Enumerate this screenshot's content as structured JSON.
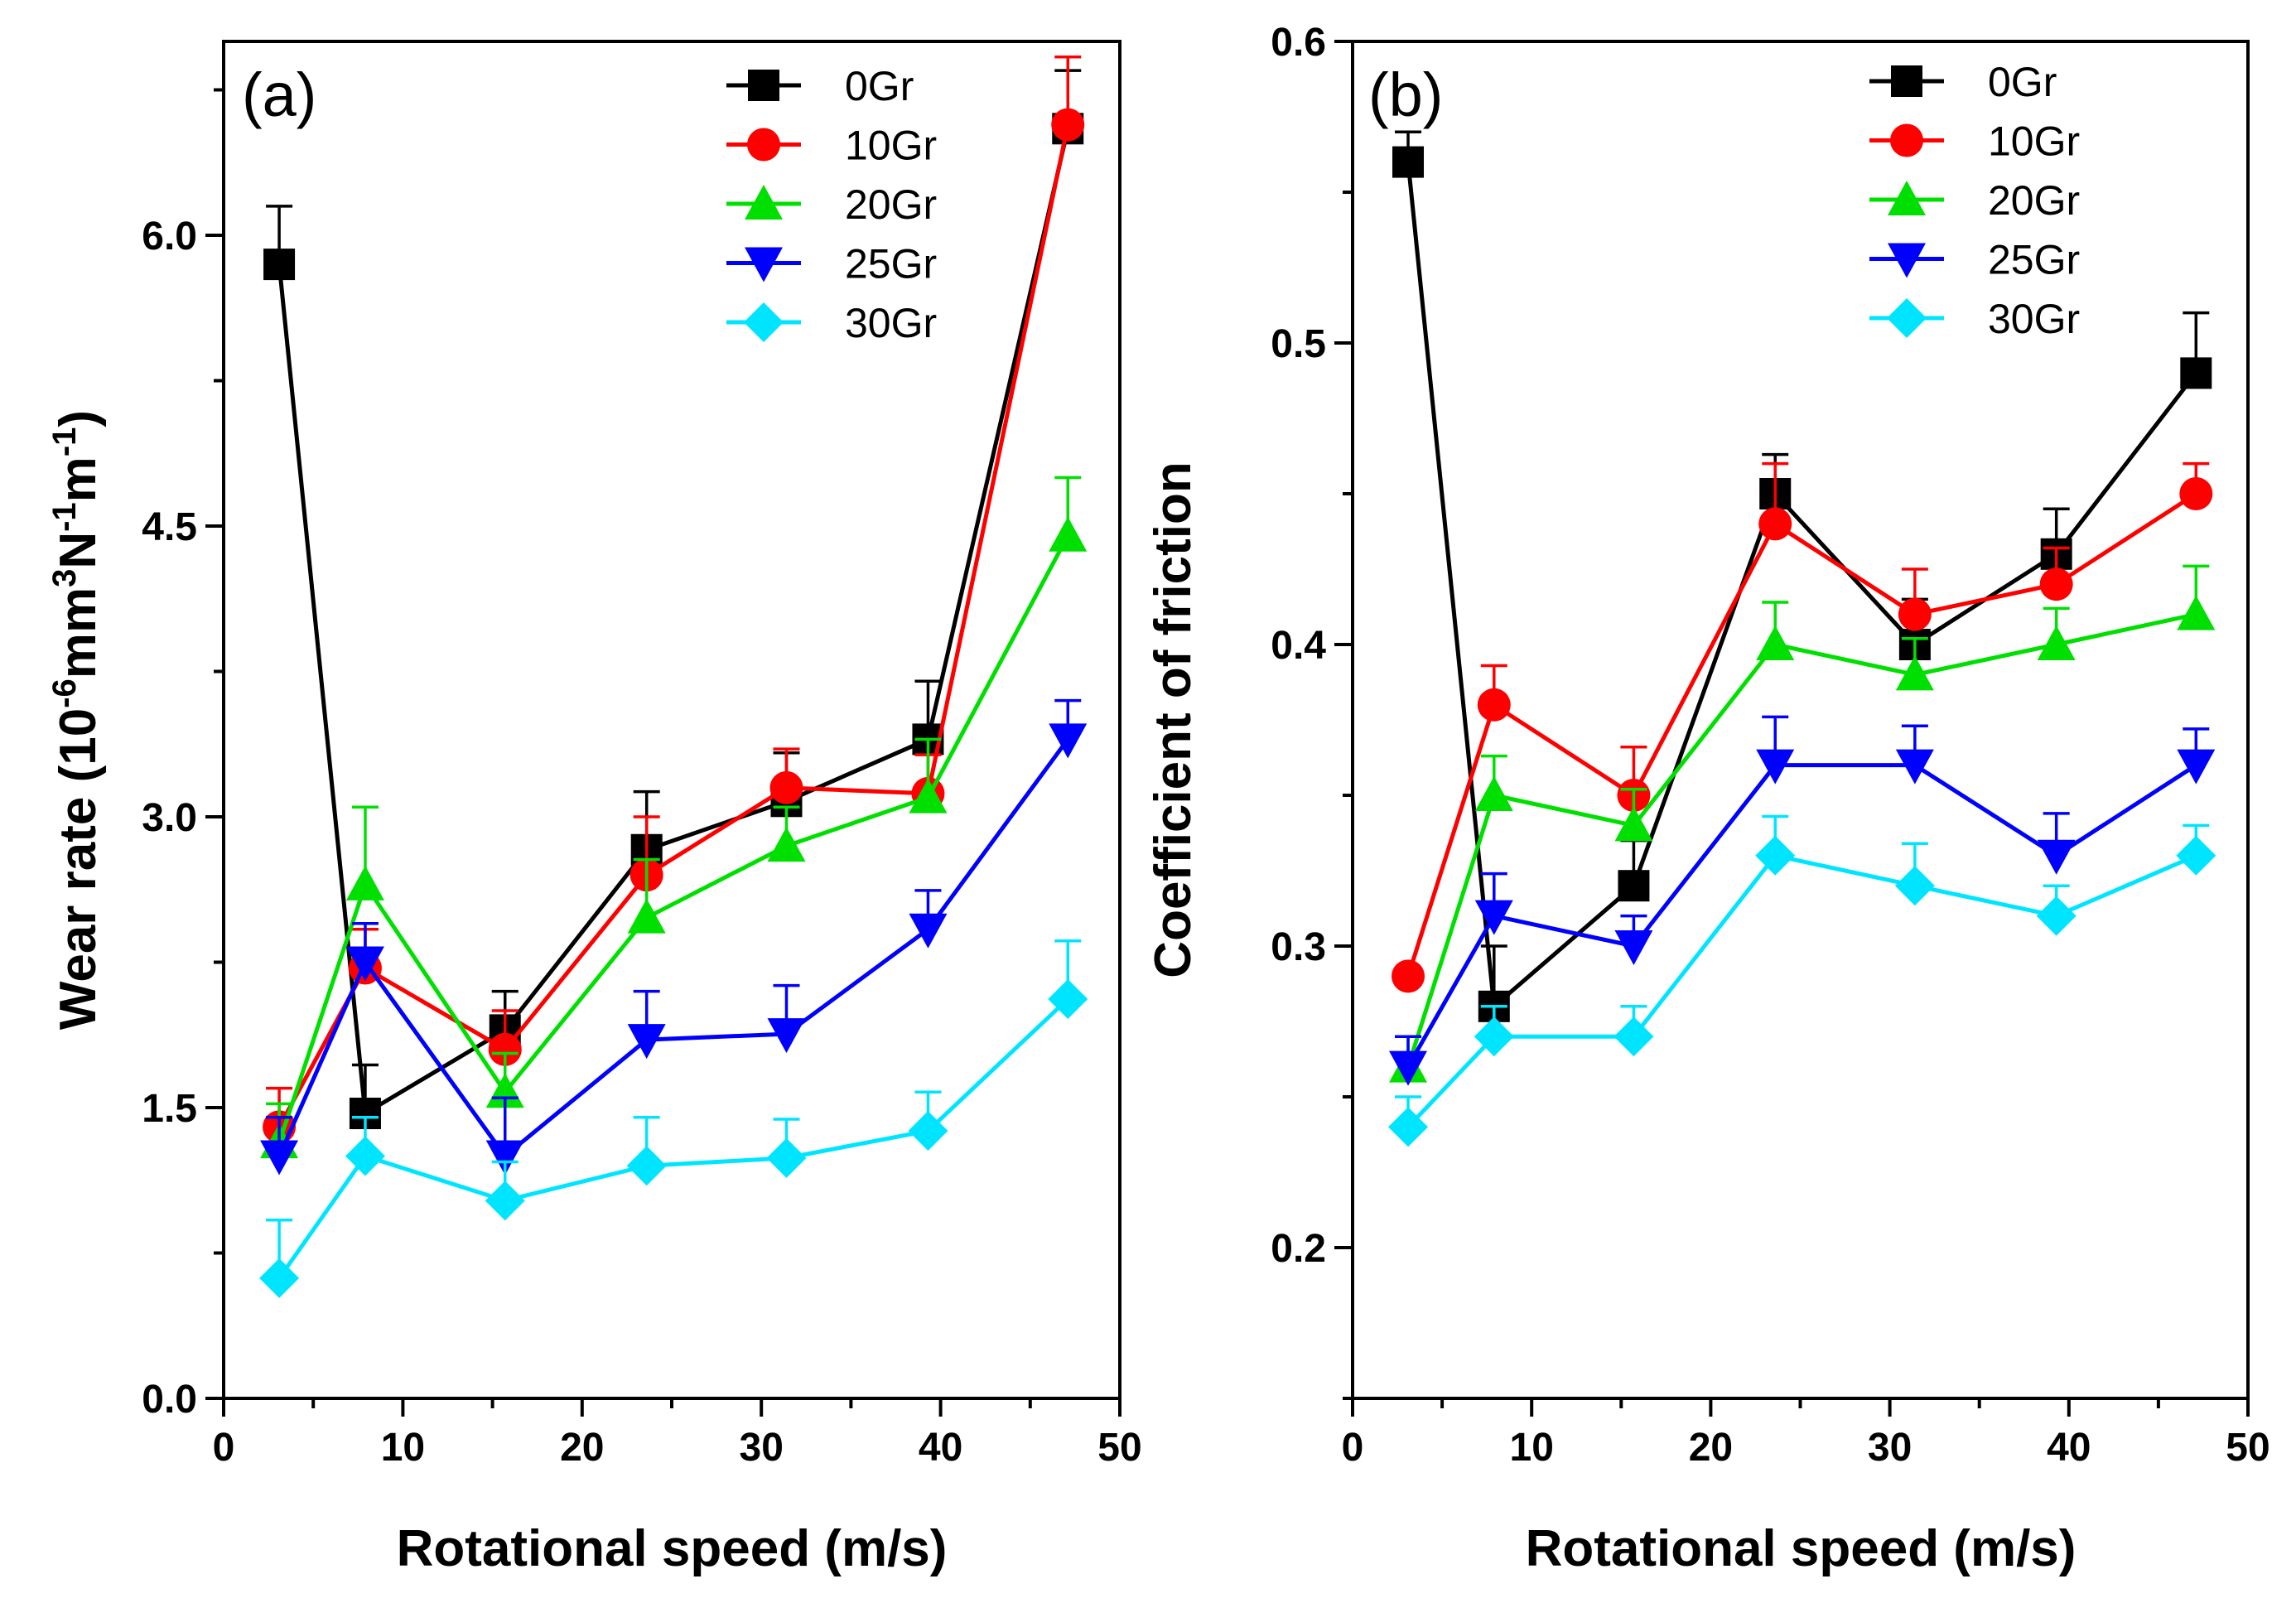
{
  "chart_data": [
    {
      "type": "line",
      "panel_label": "(a)",
      "title": "",
      "xlabel": "Rotational speed (m/s)",
      "ylabel": {
        "prefix": "Wear rate (10",
        "exp1": "-6",
        "mid1": "mm",
        "exp2": "3",
        "mid2": "N",
        "exp3": "-1",
        "mid3": "m",
        "exp4": "-1",
        "suffix": ")"
      },
      "xlim": [
        0,
        50
      ],
      "ylim": [
        0,
        7.0
      ],
      "x_ticks": [
        "0",
        "10",
        "20",
        "30",
        "40",
        "50"
      ],
      "x_tick_values": [
        0,
        10,
        20,
        30,
        40,
        50
      ],
      "y_ticks": [
        "0.0",
        "1.5",
        "3.0",
        "4.5",
        "6.0"
      ],
      "y_tick_values": [
        0.0,
        1.5,
        3.0,
        4.5,
        6.0
      ],
      "x": [
        3.1,
        7.9,
        15.7,
        23.6,
        31.4,
        39.3,
        47.1
      ],
      "legend_position": "top-right",
      "series": [
        {
          "name": "0Gr",
          "color": "#000000",
          "marker": "square",
          "values": [
            5.85,
            1.47,
            1.9,
            2.83,
            3.08,
            3.4,
            6.55
          ],
          "errors": [
            0.3,
            0.25,
            0.2,
            0.3,
            0.25,
            0.3,
            0.3
          ]
        },
        {
          "name": "10Gr",
          "color": "#ff0000",
          "marker": "circle",
          "values": [
            1.4,
            2.22,
            1.8,
            2.7,
            3.15,
            3.12,
            6.57
          ],
          "errors": [
            0.2,
            0.2,
            0.2,
            0.3,
            0.2,
            0.2,
            0.35
          ]
        },
        {
          "name": "20Gr",
          "color": "#00e000",
          "marker": "triangle-up",
          "values": [
            1.32,
            2.65,
            1.58,
            2.48,
            2.85,
            3.1,
            4.45
          ],
          "errors": [
            0.2,
            0.4,
            0.2,
            0.3,
            0.2,
            0.3,
            0.3
          ]
        },
        {
          "name": "25Gr",
          "color": "#0000ff",
          "marker": "triangle-down",
          "values": [
            1.25,
            2.25,
            1.25,
            1.85,
            1.88,
            2.42,
            3.4
          ],
          "errors": [
            0.2,
            0.2,
            0.3,
            0.25,
            0.25,
            0.2,
            0.2
          ]
        },
        {
          "name": "30Gr",
          "color": "#00e5ff",
          "marker": "diamond",
          "values": [
            0.62,
            1.25,
            1.02,
            1.2,
            1.24,
            1.38,
            2.06
          ],
          "errors": [
            0.3,
            0.2,
            0.2,
            0.25,
            0.2,
            0.2,
            0.3
          ]
        }
      ]
    },
    {
      "type": "line",
      "panel_label": "(b)",
      "title": "",
      "xlabel": "Rotational speed (m/s)",
      "ylabel": "Coefficient of friction",
      "xlim": [
        0,
        50
      ],
      "ylim": [
        0.15,
        0.6
      ],
      "x_ticks": [
        "0",
        "10",
        "20",
        "30",
        "40",
        "50"
      ],
      "x_tick_values": [
        0,
        10,
        20,
        30,
        40,
        50
      ],
      "y_ticks": [
        "0.2",
        "0.3",
        "0.4",
        "0.5",
        "0.6"
      ],
      "y_tick_values": [
        0.2,
        0.3,
        0.4,
        0.5,
        0.6
      ],
      "x": [
        3.1,
        7.9,
        15.7,
        23.6,
        31.4,
        39.3,
        47.1
      ],
      "legend_position": "top-right",
      "series": [
        {
          "name": "0Gr",
          "color": "#000000",
          "marker": "square",
          "values": [
            0.56,
            0.28,
            0.32,
            0.45,
            0.4,
            0.43,
            0.49
          ],
          "errors": [
            0.01,
            0.02,
            0.015,
            0.013,
            0.015,
            0.015,
            0.02
          ]
        },
        {
          "name": "10Gr",
          "color": "#ff0000",
          "marker": "circle",
          "values": [
            0.29,
            0.38,
            0.35,
            0.44,
            0.41,
            0.42,
            0.45
          ],
          "errors": [
            0.0,
            0.013,
            0.016,
            0.02,
            0.015,
            0.012,
            0.01
          ]
        },
        {
          "name": "20Gr",
          "color": "#00e000",
          "marker": "triangle-up",
          "values": [
            0.26,
            0.35,
            0.34,
            0.4,
            0.39,
            0.4,
            0.41
          ],
          "errors": [
            0.01,
            0.013,
            0.012,
            0.014,
            0.012,
            0.012,
            0.016
          ]
        },
        {
          "name": "25Gr",
          "color": "#0000ff",
          "marker": "triangle-down",
          "values": [
            0.26,
            0.31,
            0.3,
            0.36,
            0.36,
            0.33,
            0.36
          ],
          "errors": [
            0.01,
            0.014,
            0.01,
            0.016,
            0.013,
            0.014,
            0.012
          ]
        },
        {
          "name": "30Gr",
          "color": "#00e5ff",
          "marker": "diamond",
          "values": [
            0.24,
            0.27,
            0.27,
            0.33,
            0.32,
            0.31,
            0.33
          ],
          "errors": [
            0.01,
            0.01,
            0.01,
            0.013,
            0.014,
            0.01,
            0.01
          ]
        }
      ]
    }
  ]
}
